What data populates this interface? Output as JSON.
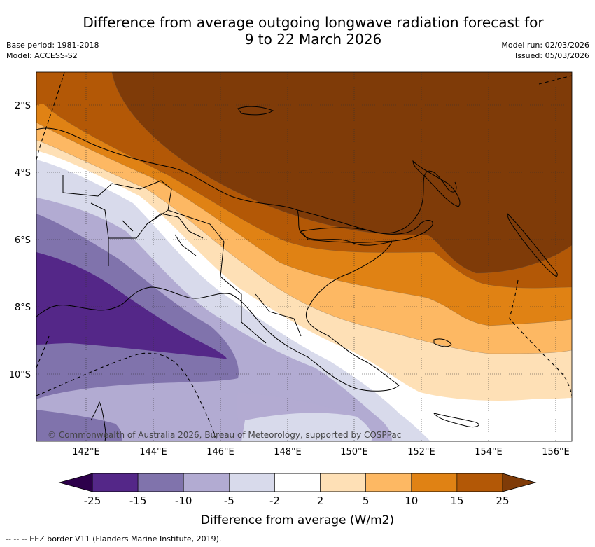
{
  "title_line1": "Difference from average outgoing longwave radiation forecast for",
  "title_line2": "9 to 22 March 2026",
  "base_period": "Base period: 1981-2018",
  "model": "Model: ACCESS-S2",
  "model_run": "Model run: 02/03/2026",
  "issued": "Issued: 05/03/2026",
  "copyright": "© Commonwealth of Australia 2026, Bureau of Meteorology, supported by COSPPac",
  "lat_labels": [
    "2°S",
    "4°S",
    "6°S",
    "8°S",
    "10°S"
  ],
  "lon_labels": [
    "142°E",
    "144°E",
    "146°E",
    "148°E",
    "150°E",
    "152°E",
    "154°E",
    "156°E"
  ],
  "colorbar": {
    "ticks": [
      "-25",
      "-15",
      "-10",
      "-5",
      "-2",
      "2",
      "5",
      "10",
      "15",
      "25"
    ],
    "under_color": "#2d004b",
    "over_color": "#7f3b08",
    "colors": [
      "#542788",
      "#8073ac",
      "#b2abd2",
      "#d8daeb",
      "#ffffff",
      "#fee0b6",
      "#fdb863",
      "#e08214",
      "#b35806"
    ],
    "label": "Difference from average (W/m2)"
  },
  "footnote": "-- -- -- EEZ border V11 (Flanders Marine Institute, 2019)."
}
